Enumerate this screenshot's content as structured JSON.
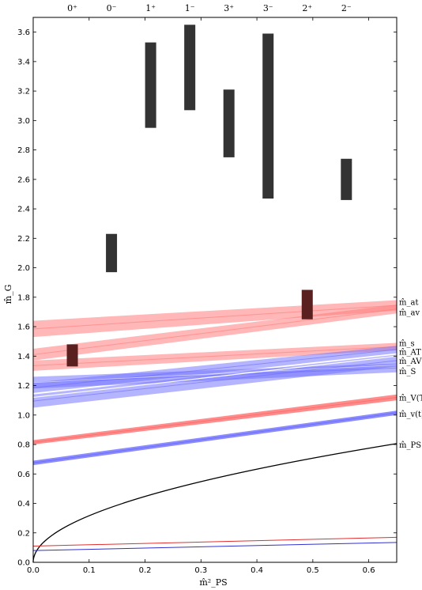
{
  "chart_data": {
    "type": "scatter",
    "xlabel": "m̂²_PS",
    "ylabel": "m̂_G",
    "xlim": [
      0,
      0.65
    ],
    "ylim": [
      0,
      3.7
    ],
    "x_ticks": [
      "0.0",
      "0.1",
      "0.2",
      "0.3",
      "0.4",
      "0.5",
      "0.6"
    ],
    "y_ticks": [
      "0.0",
      "0.2",
      "0.4",
      "0.6",
      "0.8",
      "1.0",
      "1.2",
      "1.4",
      "1.6",
      "1.8",
      "2.0",
      "2.2",
      "2.4",
      "2.6",
      "2.8",
      "3.0",
      "3.2",
      "3.4",
      "3.6"
    ],
    "glueball_channels": [
      {
        "label": "0⁺",
        "x": 0.07
      },
      {
        "label": "0⁻",
        "x": 0.14
      },
      {
        "label": "1⁺",
        "x": 0.21
      },
      {
        "label": "1⁻",
        "x": 0.28
      },
      {
        "label": "3⁺",
        "x": 0.35
      },
      {
        "label": "3⁻",
        "x": 0.42
      },
      {
        "label": "2⁺",
        "x": 0.49
      },
      {
        "label": "2⁻",
        "x": 0.56
      }
    ],
    "glueball_boxes": [
      {
        "channel": "0⁺",
        "x": 0.07,
        "y_low": 1.33,
        "y_high": 1.48,
        "color": "#5a1f1f"
      },
      {
        "channel": "0⁻",
        "x": 0.14,
        "y_low": 1.97,
        "y_high": 2.23,
        "color": "#333333"
      },
      {
        "channel": "1⁺",
        "x": 0.21,
        "y_low": 2.95,
        "y_high": 3.53,
        "color": "#333333"
      },
      {
        "channel": "1⁻",
        "x": 0.28,
        "y_low": 3.07,
        "y_high": 3.65,
        "color": "#333333"
      },
      {
        "channel": "3⁺",
        "x": 0.35,
        "y_low": 2.75,
        "y_high": 3.21,
        "color": "#333333"
      },
      {
        "channel": "3⁻",
        "x": 0.42,
        "y_low": 2.47,
        "y_high": 3.59,
        "color": "#333333"
      },
      {
        "channel": "2⁺",
        "x": 0.49,
        "y_low": 1.65,
        "y_high": 1.85,
        "color": "#5a1f1f"
      },
      {
        "channel": "2⁻",
        "x": 0.56,
        "y_low": 2.46,
        "y_high": 2.74,
        "color": "#333333"
      }
    ],
    "bands": [
      {
        "label": "m̂_at",
        "color": "#ff7b7b",
        "opacity": 0.55,
        "x": [
          0,
          0.65
        ],
        "low": [
          1.53,
          1.71
        ],
        "high": [
          1.64,
          1.78
        ]
      },
      {
        "label": "m̂_av",
        "color": "#ff7b7b",
        "opacity": 0.55,
        "x": [
          0,
          0.65
        ],
        "low": [
          1.37,
          1.69
        ],
        "high": [
          1.45,
          1.75
        ]
      },
      {
        "label": "m̂_s",
        "color": "#ff7b7b",
        "opacity": 0.55,
        "x": [
          0,
          0.65
        ],
        "low": [
          1.3,
          1.44
        ],
        "high": [
          1.37,
          1.49
        ]
      },
      {
        "label": "m̂_AT",
        "color": "#6b6bff",
        "opacity": 0.5,
        "x": [
          0,
          0.65
        ],
        "low": [
          1.15,
          1.42
        ],
        "high": [
          1.22,
          1.47
        ]
      },
      {
        "label": "m̂_AV",
        "color": "#6b6bff",
        "opacity": 0.5,
        "x": [
          0,
          0.65
        ],
        "low": [
          1.05,
          1.33
        ],
        "high": [
          1.14,
          1.41
        ]
      },
      {
        "label": "m̂_S",
        "color": "#6b6bff",
        "opacity": 0.5,
        "x": [
          0,
          0.65
        ],
        "low": [
          1.18,
          1.29
        ],
        "high": [
          1.26,
          1.35
        ]
      },
      {
        "label": "m̂_V(T)",
        "color": "#ff5a5a",
        "opacity": 0.7,
        "x": [
          0,
          0.65
        ],
        "low": [
          0.8,
          1.1
        ],
        "high": [
          0.83,
          1.14
        ]
      },
      {
        "label": "m̂_v(t)",
        "color": "#5a5aff",
        "opacity": 0.7,
        "x": [
          0,
          0.65
        ],
        "low": [
          0.66,
          1.0
        ],
        "high": [
          0.69,
          1.03
        ]
      }
    ],
    "lines": [
      {
        "label": "m̂_PS",
        "color": "#000000",
        "kind": "sqrt",
        "x": [
          0,
          0.65
        ]
      },
      {
        "label": "",
        "color": "#e03030",
        "kind": "linear",
        "x": [
          0,
          0.65
        ],
        "y": [
          0.11,
          0.17
        ]
      },
      {
        "label": "",
        "color": "#3030d0",
        "kind": "linear",
        "x": [
          0,
          0.65
        ],
        "y": [
          0.08,
          0.135
        ]
      }
    ],
    "right_labels": [
      {
        "text": "m̂_at",
        "y": 1.77
      },
      {
        "text": "m̂_av",
        "y": 1.7
      },
      {
        "text": "m̂_s",
        "y": 1.49
      },
      {
        "text": "m̂_AT",
        "y": 1.43
      },
      {
        "text": "m̂_AV",
        "y": 1.37
      },
      {
        "text": "m̂_S",
        "y": 1.3
      },
      {
        "text": "m̂_V(T",
        "y": 1.12
      },
      {
        "text": "m̂_v(t)",
        "y": 1.01
      },
      {
        "text": "m̂_PS",
        "y": 0.8
      }
    ]
  }
}
